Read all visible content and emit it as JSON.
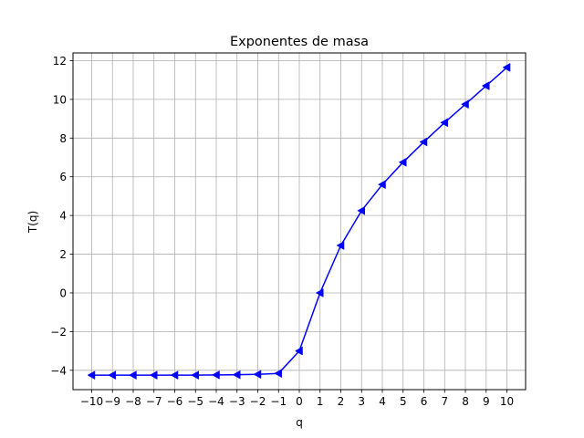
{
  "chart_data": {
    "type": "line",
    "title": "Exponentes de masa",
    "xlabel": "q",
    "ylabel": "T(q)",
    "xlim": [
      -10.9,
      10.9
    ],
    "ylim": [
      -5.0,
      12.4
    ],
    "grid": true,
    "x_ticks": [
      -10,
      -9,
      -8,
      -7,
      -6,
      -5,
      -4,
      -3,
      -2,
      -1,
      0,
      1,
      2,
      3,
      4,
      5,
      6,
      7,
      8,
      9,
      10
    ],
    "x_tick_labels": [
      "−10",
      "−9",
      "−8",
      "−7",
      "−6",
      "−5",
      "−4",
      "−3",
      "−2",
      "−1",
      "0",
      "1",
      "2",
      "3",
      "4",
      "5",
      "6",
      "7",
      "8",
      "9",
      "10"
    ],
    "y_ticks": [
      -4,
      -2,
      0,
      2,
      4,
      6,
      8,
      10,
      12
    ],
    "y_tick_labels": [
      "−4",
      "−2",
      "0",
      "2",
      "4",
      "6",
      "8",
      "10",
      "12"
    ],
    "series": [
      {
        "color": "#0000ff",
        "marker": "triangle-left",
        "x": [
          -10,
          -9,
          -8,
          -7,
          -6,
          -5,
          -4,
          -3,
          -2,
          -1,
          0,
          1,
          2,
          3,
          4,
          5,
          6,
          7,
          8,
          9,
          10
        ],
        "y": [
          -4.25,
          -4.25,
          -4.25,
          -4.25,
          -4.25,
          -4.25,
          -4.24,
          -4.23,
          -4.21,
          -4.16,
          -3.0,
          0.0,
          2.45,
          4.25,
          5.6,
          6.75,
          7.8,
          8.8,
          9.75,
          10.7,
          11.65
        ]
      }
    ]
  }
}
